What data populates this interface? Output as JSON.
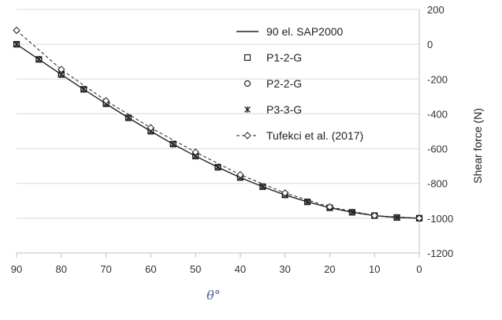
{
  "chart_data": {
    "type": "line",
    "title": "",
    "xlabel": "θ°",
    "ylabel": "Shear force (N)",
    "xlim": [
      90,
      0
    ],
    "ylim": [
      -1200,
      200
    ],
    "x_reversed": true,
    "x_ticks": [
      "90",
      "80",
      "70",
      "60",
      "50",
      "40",
      "30",
      "20",
      "10",
      "0"
    ],
    "y_ticks": [
      "200",
      "0",
      "-200",
      "-400",
      "-600",
      "-800",
      "-1000",
      "-1200"
    ],
    "y_axis_side": "right",
    "grid": "horizontal",
    "legend_position": "top-right",
    "series": [
      {
        "name": "90 el. SAP2000",
        "style": "solid-line",
        "x": [
          90,
          85,
          80,
          75,
          70,
          65,
          60,
          55,
          50,
          45,
          40,
          35,
          30,
          25,
          20,
          15,
          10,
          5,
          0
        ],
        "y": [
          0,
          -87,
          -174,
          -259,
          -342,
          -423,
          -500,
          -574,
          -643,
          -707,
          -766,
          -819,
          -866,
          -906,
          -940,
          -966,
          -985,
          -996,
          -1000
        ]
      },
      {
        "name": "P1-2-G",
        "style": "square-marker",
        "x": [
          90,
          85,
          80,
          75,
          70,
          65,
          60,
          55,
          50,
          45,
          40,
          35,
          30,
          25,
          20,
          15,
          10,
          5,
          0
        ],
        "y": [
          0,
          -87,
          -174,
          -259,
          -342,
          -423,
          -500,
          -574,
          -643,
          -707,
          -766,
          -819,
          -866,
          -906,
          -940,
          -966,
          -985,
          -996,
          -1000
        ]
      },
      {
        "name": "P2-2-G",
        "style": "circle-marker",
        "x": [
          90,
          85,
          80,
          75,
          70,
          65,
          60,
          55,
          50,
          45,
          40,
          35,
          30,
          25,
          20,
          15,
          10,
          5,
          0
        ],
        "y": [
          0,
          -87,
          -174,
          -259,
          -342,
          -423,
          -500,
          -574,
          -643,
          -707,
          -766,
          -819,
          -866,
          -906,
          -940,
          -966,
          -985,
          -996,
          -1000
        ]
      },
      {
        "name": "P3-3-G",
        "style": "star-marker",
        "x": [
          90,
          85,
          80,
          75,
          70,
          65,
          60,
          55,
          50,
          45,
          40,
          35,
          30,
          25,
          20,
          15,
          10,
          5,
          0
        ],
        "y": [
          0,
          -87,
          -174,
          -259,
          -342,
          -423,
          -500,
          -574,
          -643,
          -707,
          -766,
          -819,
          -866,
          -906,
          -940,
          -966,
          -985,
          -996,
          -1000
        ]
      },
      {
        "name": "Tufekci et al. (2017)",
        "style": "dashed-line-diamond",
        "x": [
          90,
          80,
          70,
          60,
          50,
          40,
          30,
          20,
          10,
          0
        ],
        "y": [
          80,
          -145,
          -325,
          -480,
          -620,
          -750,
          -855,
          -935,
          -985,
          -1000
        ]
      }
    ],
    "colors": {
      "line": "#222222",
      "grid": "#d9d9d9",
      "axis": "#bfbfbf",
      "xlabel": "#4a5f8a"
    }
  }
}
